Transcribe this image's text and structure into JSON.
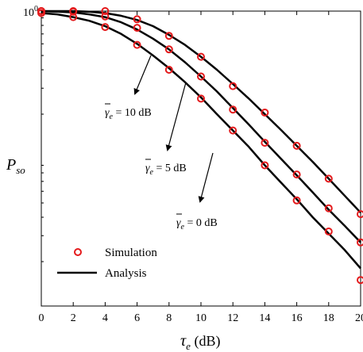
{
  "chart_data": {
    "type": "line",
    "xlabel": "τe (dB)",
    "xlabel_symbol": "τ",
    "xlabel_sub": "e",
    "xlabel_unit": " (dB)",
    "ylabel_symbol": "P",
    "ylabel_sub": "so",
    "xlim": [
      0,
      20
    ],
    "ylim_log": [
      0.01,
      1
    ],
    "yscale": "log",
    "xticks": [
      "0",
      "2",
      "4",
      "6",
      "8",
      "10",
      "12",
      "14",
      "16",
      "18",
      "20"
    ],
    "yticks": [
      {
        "value": 1,
        "base": "10",
        "exp": "0"
      }
    ],
    "grid": false,
    "legend_position": "lower-left",
    "legend": {
      "marker_label": "Simulation",
      "line_label": "Analysis"
    },
    "colors": {
      "marker": "#e41a1c",
      "line": "#000000"
    },
    "series": [
      {
        "name": "γ̄e = 10 dB",
        "annotation": {
          "main": "γ",
          "sub": "e",
          "suffix": " = 10 dB"
        },
        "analysis": {
          "x": [
            0,
            1,
            2,
            3,
            4,
            5,
            6,
            7,
            8,
            9,
            10,
            11,
            12,
            13,
            14,
            15,
            16,
            17,
            18,
            19,
            20
          ],
          "y": [
            1,
            1,
            1,
            0.99,
            0.97,
            0.93,
            0.87,
            0.79,
            0.69,
            0.59,
            0.49,
            0.4,
            0.32,
            0.255,
            0.2,
            0.157,
            0.122,
            0.095,
            0.073,
            0.056,
            0.043
          ]
        },
        "simulation": {
          "x": [
            0,
            2,
            4,
            6,
            8,
            10,
            12,
            14,
            16,
            18,
            20
          ],
          "y": [
            1,
            1,
            1,
            0.88,
            0.68,
            0.49,
            0.31,
            0.205,
            0.122,
            0.073,
            0.042
          ]
        }
      },
      {
        "name": "γ̄e = 5 dB",
        "annotation": {
          "main": "γ",
          "sub": "e",
          "suffix": " = 5 dB"
        },
        "analysis": {
          "x": [
            0,
            1,
            2,
            3,
            4,
            5,
            6,
            7,
            8,
            9,
            10,
            11,
            12,
            13,
            14,
            15,
            16,
            17,
            18,
            19,
            20
          ],
          "y": [
            1,
            0.99,
            0.98,
            0.95,
            0.91,
            0.84,
            0.75,
            0.65,
            0.55,
            0.45,
            0.36,
            0.285,
            0.22,
            0.17,
            0.13,
            0.1,
            0.077,
            0.059,
            0.045,
            0.035,
            0.027
          ]
        },
        "simulation": {
          "x": [
            0,
            2,
            4,
            6,
            8,
            10,
            12,
            14,
            16,
            18,
            20
          ],
          "y": [
            1,
            0.99,
            0.92,
            0.77,
            0.55,
            0.36,
            0.215,
            0.128,
            0.078,
            0.046,
            0.027
          ]
        }
      },
      {
        "name": "γ̄e = 0 dB",
        "annotation": {
          "main": "γ",
          "sub": "e",
          "suffix": " = 0 dB"
        },
        "analysis": {
          "x": [
            0,
            1,
            2,
            3,
            4,
            5,
            6,
            7,
            8,
            9,
            10,
            11,
            12,
            13,
            14,
            15,
            16,
            17,
            18,
            19,
            20
          ],
          "y": [
            0.97,
            0.95,
            0.91,
            0.86,
            0.79,
            0.7,
            0.6,
            0.5,
            0.41,
            0.33,
            0.26,
            0.2,
            0.155,
            0.12,
            0.09,
            0.069,
            0.053,
            0.04,
            0.031,
            0.024,
            0.018
          ]
        },
        "simulation": {
          "x": [
            0,
            2,
            4,
            6,
            8,
            10,
            12,
            14,
            16,
            18,
            20
          ],
          "y": [
            0.97,
            0.91,
            0.78,
            0.59,
            0.4,
            0.255,
            0.155,
            0.09,
            0.052,
            0.032,
            0.015
          ]
        }
      }
    ]
  }
}
